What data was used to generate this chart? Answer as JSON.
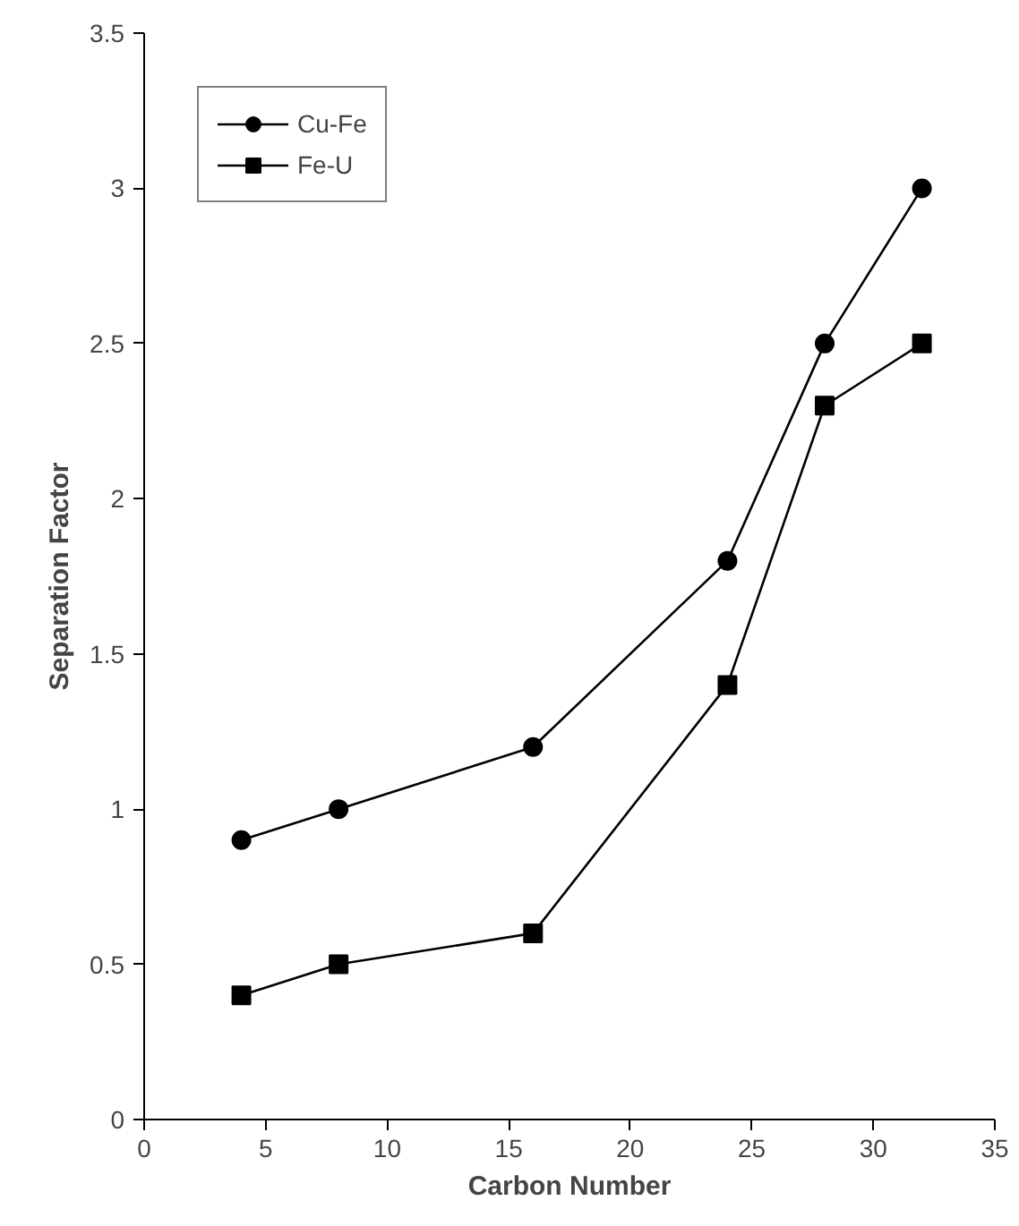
{
  "chart_data": {
    "type": "line",
    "xlabel": "Carbon Number",
    "ylabel": "Separation Factor",
    "x": [
      4,
      8,
      16,
      24,
      28,
      32
    ],
    "series": [
      {
        "name": "Cu-Fe",
        "color": "#000000",
        "marker": "circle",
        "values": [
          0.9,
          1.0,
          1.2,
          1.8,
          2.5,
          3.0
        ]
      },
      {
        "name": "Fe-U",
        "color": "#000000",
        "marker": "square",
        "values": [
          0.4,
          0.5,
          0.6,
          1.4,
          2.3,
          2.5
        ]
      }
    ],
    "xlim": [
      0,
      35
    ],
    "xticks": [
      0,
      5,
      10,
      15,
      20,
      25,
      30,
      35
    ],
    "ylim": [
      0,
      3.5
    ],
    "yticks": [
      0,
      0.5,
      1,
      1.5,
      2,
      2.5,
      3,
      3.5
    ],
    "grid": false,
    "legend": "top left",
    "line_style": "solid"
  }
}
